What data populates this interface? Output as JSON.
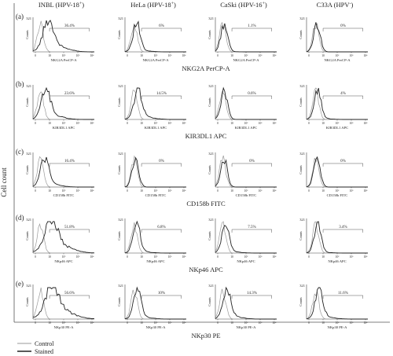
{
  "figure": {
    "y_axis_label": "Cell count",
    "columns": [
      {
        "name": "INBL",
        "sup": "HPV-18",
        "sign": "+"
      },
      {
        "name": "HeLa",
        "sup": "HPV-18",
        "sign": "+"
      },
      {
        "name": "CaSki",
        "sup": "HPV-16",
        "sign": "+"
      },
      {
        "name": "C33A",
        "sup": "HPV",
        "sign": "-"
      }
    ],
    "rows": [
      {
        "letter": "(a)",
        "marker": "NKG2A PerCP-A",
        "xaxis": "NKG2A PerCP-A",
        "percents": [
          "36.4%",
          "6%",
          "1.1%",
          "0%"
        ]
      },
      {
        "letter": "(b)",
        "marker": "KIR3DL1 APC",
        "xaxis": "KIR3DL1 APC",
        "percents": [
          "23.6%",
          "14.5%",
          "0.6%",
          "4%"
        ]
      },
      {
        "letter": "(c)",
        "marker": "CD158b FITC",
        "xaxis": "CD158b FITC",
        "percents": [
          "16.4%",
          "0%",
          "0%",
          "0%"
        ]
      },
      {
        "letter": "(d)",
        "marker": "NKp46 APC",
        "xaxis": "NKp46 APC",
        "percents": [
          "51.8%",
          "6.8%",
          "7.5%",
          "3.4%"
        ]
      },
      {
        "letter": "(e)",
        "marker": "NKp30 PE",
        "xaxis": "NKp30 PE-A",
        "percents": [
          "56.6%",
          "10%",
          "14.3%",
          "11.6%"
        ]
      }
    ],
    "panel_ymax_label": "321",
    "panel_counts_label": "Counts",
    "legend": [
      {
        "name": "Control",
        "color": "#9a9a9a"
      },
      {
        "name": "Stained",
        "color": "#222222"
      }
    ]
  },
  "chart_data": {
    "type": "histogram-grid",
    "title": "",
    "ylabel": "Cell count",
    "series": [
      {
        "name": "Control"
      },
      {
        "name": "Stained"
      }
    ],
    "positive_percent": {
      "NKG2A PerCP-A": {
        "INBL": 36.4,
        "HeLa": 6,
        "CaSki": 1.1,
        "C33A": 0
      },
      "KIR3DL1 APC": {
        "INBL": 23.6,
        "HeLa": 14.5,
        "CaSki": 0.6,
        "C33A": 4
      },
      "CD158b FITC": {
        "INBL": 16.4,
        "HeLa": 0,
        "CaSki": 0,
        "C33A": 0
      },
      "NKp46 APC": {
        "INBL": 51.8,
        "HeLa": 6.8,
        "CaSki": 7.5,
        "C33A": 3.4
      },
      "NKp30 PE": {
        "INBL": 56.6,
        "HeLa": 10,
        "CaSki": 14.3,
        "C33A": 11.6
      }
    },
    "ylim": [
      0,
      321
    ]
  }
}
